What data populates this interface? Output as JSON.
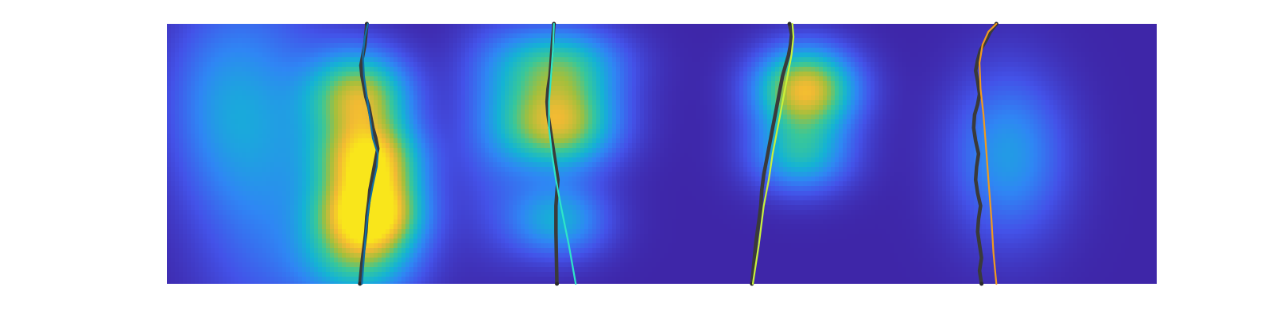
{
  "chart_data": {
    "type": "heatmap",
    "title": "",
    "xlabel": "",
    "ylabel": "",
    "axes_visible": false,
    "grid": false,
    "legend": "none",
    "colormap": [
      "#3e26a8",
      "#4352e8",
      "#2f86f4",
      "#14b3d4",
      "#38c79a",
      "#a3bf3c",
      "#f2ba33",
      "#f9e61b"
    ],
    "xlim": [
      0,
      100
    ],
    "ylim": [
      0,
      100
    ],
    "hotspots": [
      {
        "x": 20.5,
        "y": 28,
        "sx": 3.5,
        "sy": 10,
        "v": 1.0
      },
      {
        "x": 20.5,
        "y": 48,
        "sx": 3.5,
        "sy": 10,
        "v": 0.85
      },
      {
        "x": 19.5,
        "y": 72,
        "sx": 3.5,
        "sy": 12,
        "v": 0.75
      },
      {
        "x": 19.5,
        "y": 10,
        "sx": 4,
        "sy": 12,
        "v": 0.5
      },
      {
        "x": 39.5,
        "y": 62,
        "sx": 4,
        "sy": 12,
        "v": 0.8
      },
      {
        "x": 39.5,
        "y": 85,
        "sx": 4.5,
        "sy": 10,
        "v": 0.5
      },
      {
        "x": 39.5,
        "y": 25,
        "sx": 3.5,
        "sy": 10,
        "v": 0.4
      },
      {
        "x": 64.5,
        "y": 75,
        "sx": 3.5,
        "sy": 11,
        "v": 0.85
      },
      {
        "x": 64,
        "y": 50,
        "sx": 3.5,
        "sy": 10,
        "v": 0.45
      },
      {
        "x": 85,
        "y": 50,
        "sx": 4,
        "sy": 22,
        "v": 0.35
      },
      {
        "x": 10,
        "y": 50,
        "sx": 5,
        "sy": 45,
        "v": 0.28
      },
      {
        "x": 5,
        "y": 70,
        "sx": 4,
        "sy": 25,
        "v": 0.2
      },
      {
        "x": 33,
        "y": 60,
        "sx": 3,
        "sy": 30,
        "v": 0.15
      }
    ],
    "series": [
      {
        "color": "#0f6ea8",
        "x": [
          20.3,
          20.0,
          19.8,
          19.9,
          20.2,
          20.5,
          20.8,
          21.3,
          21.2,
          20.8,
          20.4,
          20.1,
          19.7
        ],
        "y": [
          100,
          95,
          88,
          80,
          72,
          64,
          56,
          50,
          45,
          38,
          30,
          20,
          0
        ]
      },
      {
        "color": "#2ee6c8",
        "x": [
          39.1,
          39.0,
          38.8,
          38.6,
          38.6,
          38.9,
          39.3,
          39.8,
          40.6,
          41.3
        ],
        "y": [
          100,
          90,
          80,
          70,
          60,
          50,
          40,
          30,
          15,
          0
        ]
      },
      {
        "color": "#c8f23a",
        "x": [
          63.2,
          63.3,
          63.1,
          62.7,
          62.2,
          61.7,
          61.2,
          60.8,
          60.3,
          59.8,
          59.2
        ],
        "y": [
          100,
          95,
          88,
          80,
          70,
          60,
          50,
          40,
          30,
          15,
          0
        ]
      },
      {
        "color": "#f19a1f",
        "x": [
          83.8,
          83.0,
          82.4,
          82.1,
          82.2,
          82.5,
          82.8,
          83.0,
          83.3,
          83.5,
          83.8
        ],
        "y": [
          100,
          97,
          92,
          85,
          75,
          65,
          50,
          40,
          25,
          12,
          0
        ]
      }
    ],
    "detections": [
      {
        "x": [
          20.2,
          20.1,
          20.0,
          19.8,
          19.6,
          19.7,
          19.9,
          20.1,
          20.4,
          20.6,
          20.8,
          21.1,
          21.3,
          21.1,
          20.9,
          20.7,
          20.5,
          20.4,
          20.2,
          20.1,
          19.9,
          19.7,
          19.5
        ],
        "y": [
          100,
          96,
          92,
          88,
          84,
          80,
          76,
          72,
          68,
          64,
          60,
          56,
          52,
          48,
          44,
          40,
          36,
          32,
          26,
          20,
          14,
          8,
          0
        ]
      },
      {
        "x": [
          39.1,
          39.0,
          38.9,
          38.8,
          38.7,
          38.5,
          38.4,
          38.5,
          38.7,
          38.9,
          39.1,
          39.3,
          39.5,
          39.4,
          39.3,
          39.3,
          39.4
        ],
        "y": [
          100,
          95,
          90,
          85,
          80,
          75,
          70,
          65,
          60,
          55,
          50,
          45,
          40,
          35,
          30,
          20,
          0
        ]
      },
      {
        "x": [
          62.9,
          63.1,
          63.0,
          62.8,
          62.5,
          62.2,
          62.0,
          61.8,
          61.5,
          61.2,
          60.9,
          60.6,
          60.3,
          60.1,
          60.0,
          59.8,
          59.5,
          59.3,
          59.1
        ],
        "y": [
          100,
          96,
          92,
          88,
          84,
          80,
          76,
          72,
          66,
          60,
          54,
          48,
          42,
          36,
          30,
          24,
          16,
          8,
          0
        ]
      },
      {
        "x": [
          83.8,
          83.2,
          82.8,
          82.2,
          81.9,
          81.7,
          81.9,
          82.1,
          81.9,
          81.6,
          81.5,
          81.7,
          82.0,
          81.8,
          81.7,
          81.9,
          82.2,
          82.0,
          81.9,
          82.1,
          82.3,
          82.1,
          82.3
        ],
        "y": [
          100,
          97,
          94,
          90,
          86,
          82,
          78,
          73,
          69,
          65,
          60,
          55,
          50,
          45,
          40,
          35,
          30,
          25,
          20,
          15,
          10,
          5,
          0
        ]
      }
    ]
  }
}
